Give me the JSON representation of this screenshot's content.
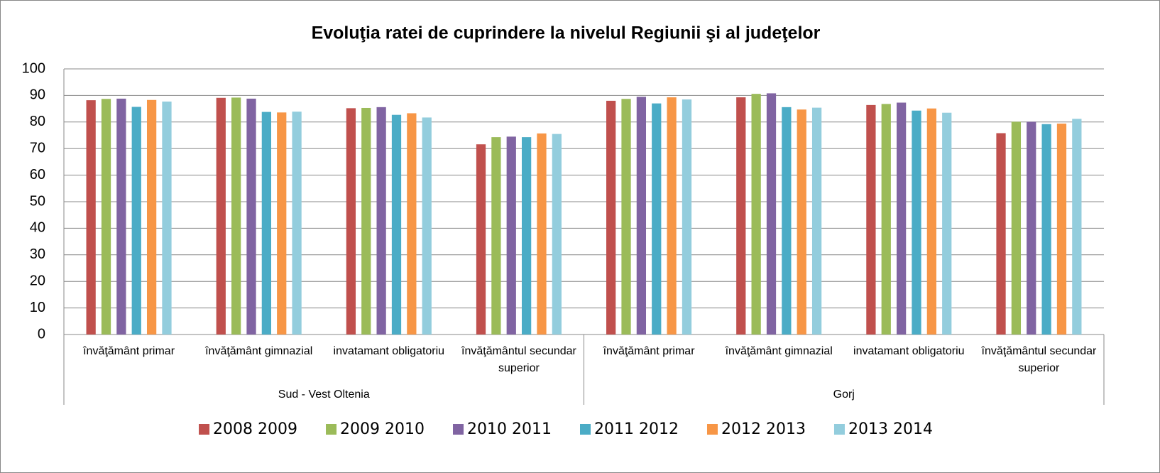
{
  "chart_data": {
    "type": "bar",
    "title": "Evoluţia ratei de cuprindere la nivelul Regiunii şi al judeţelor",
    "categories": [
      "învăţământ primar",
      "învăţământ gimnazial",
      "invatamant obligatoriu",
      "învăţământul secundar superior",
      "învăţământ primar",
      "învăţământ gimnazial",
      "invatamant obligatoriu",
      "învăţământul secundar superior"
    ],
    "category_groups": [
      "Sud - Vest Oltenia",
      "Gorj"
    ],
    "series": [
      {
        "name": "2008 2009",
        "color": "#c0504d",
        "values": [
          88.2,
          89.1,
          85.2,
          71.6,
          88.0,
          89.3,
          86.4,
          75.8
        ]
      },
      {
        "name": "2009 2010",
        "color": "#9bbb59",
        "values": [
          88.7,
          89.2,
          85.3,
          74.3,
          88.7,
          90.6,
          86.8,
          80.1
        ]
      },
      {
        "name": "2010 2011",
        "color": "#8064a2",
        "values": [
          88.8,
          88.8,
          85.6,
          74.5,
          89.5,
          90.8,
          87.3,
          80.1
        ]
      },
      {
        "name": "2011 2012",
        "color": "#4bacc6",
        "values": [
          85.7,
          83.8,
          82.7,
          74.3,
          87.0,
          85.6,
          84.3,
          79.2
        ]
      },
      {
        "name": "2012 2013",
        "color": "#f79646",
        "values": [
          88.3,
          83.6,
          83.3,
          75.7,
          89.3,
          84.7,
          85.1,
          79.4
        ]
      },
      {
        "name": "2013 2014",
        "color": "#93cddd",
        "values": [
          87.7,
          83.9,
          81.7,
          75.5,
          88.5,
          85.4,
          83.5,
          81.2
        ]
      }
    ],
    "ylim": [
      0,
      100
    ],
    "yticks": [
      0,
      10,
      20,
      30,
      40,
      50,
      60,
      70,
      80,
      90,
      100
    ],
    "grid": true,
    "legend": "bottom"
  }
}
